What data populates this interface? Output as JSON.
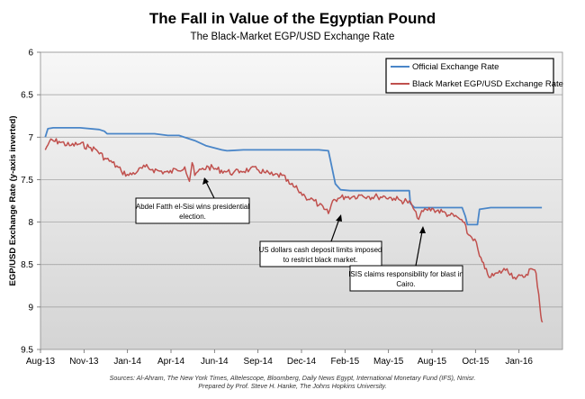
{
  "chart_data": {
    "type": "line",
    "title": "The Fall in Value of the Egyptian Pound",
    "subtitle": "The Black-Market EGP/USD Exchange Rate",
    "ylabel": "EGP/USD Exchange Rate (y-axis inverted)",
    "xlabel": "",
    "ylim": [
      6,
      9.5
    ],
    "y_inverted": true,
    "grid": true,
    "legend_position": "top-right",
    "x_ticks": [
      "Aug-13",
      "Nov-13",
      "Jan-14",
      "Apr-14",
      "Jun-14",
      "Sep-14",
      "Dec-14",
      "Feb-15",
      "May-15",
      "Aug-15",
      "Oct-15",
      "Jan-16"
    ],
    "y_ticks": [
      "6",
      "6.5",
      "7",
      "7.5",
      "8",
      "8.5",
      "9",
      "9.5"
    ],
    "series": [
      {
        "name": "Official Exchange Rate",
        "color": "#4a86c8",
        "x": [
          "2013-08-10",
          "2013-08-15",
          "2013-08-25",
          "2013-10-15",
          "2013-11-20",
          "2013-11-30",
          "2013-12-05",
          "2014-03-05",
          "2014-03-30",
          "2014-04-20",
          "2014-05-20",
          "2014-06-10",
          "2014-07-10",
          "2014-07-20",
          "2014-08-20",
          "2014-10-01",
          "2014-12-15",
          "2015-01-10",
          "2015-01-28",
          "2015-02-01",
          "2015-02-10",
          "2015-02-20",
          "2015-03-10",
          "2015-03-20",
          "2015-04-20",
          "2015-06-01",
          "2015-06-20",
          "2015-06-30",
          "2015-07-02",
          "2015-07-10",
          "2015-08-15",
          "2015-09-15",
          "2015-10-08",
          "2015-10-14",
          "2015-10-18",
          "2015-10-28",
          "2015-11-06",
          "2015-11-10",
          "2015-12-01",
          "2015-12-20",
          "2016-01-20",
          "2016-02-10",
          "2016-03-07"
        ],
        "values": [
          7.0,
          6.9,
          6.89,
          6.89,
          6.91,
          6.93,
          6.96,
          6.96,
          6.98,
          6.98,
          7.04,
          7.1,
          7.15,
          7.16,
          7.15,
          7.15,
          7.15,
          7.15,
          7.16,
          7.28,
          7.55,
          7.62,
          7.63,
          7.63,
          7.63,
          7.63,
          7.63,
          7.63,
          7.78,
          7.83,
          7.83,
          7.83,
          7.83,
          7.93,
          8.03,
          8.03,
          8.03,
          7.85,
          7.83,
          7.83,
          7.83,
          7.83,
          7.83
        ]
      },
      {
        "name": "Black Market EGP/USD Exchange Rate",
        "color": "#c0504d",
        "x": [
          "2013-08-10",
          "2013-08-18",
          "2013-09-05",
          "2013-09-25",
          "2013-10-15",
          "2013-11-01",
          "2013-11-15",
          "2013-12-01",
          "2013-12-15",
          "2014-01-01",
          "2014-01-15",
          "2014-02-01",
          "2014-02-15",
          "2014-03-01",
          "2014-03-15",
          "2014-04-01",
          "2014-04-15",
          "2014-05-01",
          "2014-05-10",
          "2014-05-15",
          "2014-05-20",
          "2014-06-01",
          "2014-06-15",
          "2014-07-01",
          "2014-07-15",
          "2014-08-01",
          "2014-08-15",
          "2014-09-01",
          "2014-09-15",
          "2014-10-01",
          "2014-10-15",
          "2014-11-01",
          "2014-11-15",
          "2014-12-01",
          "2014-12-15",
          "2015-01-01",
          "2015-01-10",
          "2015-01-20",
          "2015-01-28",
          "2015-02-05",
          "2015-02-15",
          "2015-03-01",
          "2015-03-15",
          "2015-04-01",
          "2015-04-15",
          "2015-05-01",
          "2015-05-15",
          "2015-06-01",
          "2015-06-15",
          "2015-06-25",
          "2015-07-05",
          "2015-07-15",
          "2015-08-01",
          "2015-08-15",
          "2015-09-01",
          "2015-09-15",
          "2015-10-01",
          "2015-10-10",
          "2015-10-20",
          "2015-11-01",
          "2015-11-10",
          "2015-11-20",
          "2015-12-01",
          "2015-12-15",
          "2016-01-01",
          "2016-01-15",
          "2016-02-01",
          "2016-02-15",
          "2016-02-25",
          "2016-03-01",
          "2016-03-05",
          "2016-03-08"
        ],
        "values": [
          7.15,
          7.05,
          7.05,
          7.1,
          7.08,
          7.12,
          7.15,
          7.25,
          7.3,
          7.4,
          7.45,
          7.4,
          7.35,
          7.38,
          7.4,
          7.42,
          7.38,
          7.35,
          7.52,
          7.3,
          7.45,
          7.38,
          7.35,
          7.38,
          7.4,
          7.42,
          7.4,
          7.38,
          7.38,
          7.42,
          7.45,
          7.45,
          7.55,
          7.62,
          7.7,
          7.75,
          7.8,
          7.85,
          7.9,
          7.75,
          7.72,
          7.7,
          7.7,
          7.68,
          7.7,
          7.7,
          7.7,
          7.72,
          7.75,
          7.75,
          7.8,
          7.95,
          7.85,
          7.85,
          7.88,
          7.92,
          7.95,
          8.0,
          8.15,
          8.2,
          8.4,
          8.55,
          8.65,
          8.6,
          8.55,
          8.65,
          8.65,
          8.55,
          8.6,
          8.85,
          9.1,
          9.18
        ]
      }
    ],
    "annotations": [
      {
        "id": "sisi",
        "lines": [
          "Abdel Fatth el-Sisi wins presidential",
          "election."
        ]
      },
      {
        "id": "cash",
        "lines": [
          "US dollars cash deposit limits imposed",
          "to restrict black market."
        ]
      },
      {
        "id": "isis",
        "lines": [
          "ISIS claims responsibility for blast in",
          "Cairo."
        ]
      }
    ]
  },
  "footer": {
    "sources": "Sources: Al-Ahram, The New York Times, Altelescope, Bloomberg, Daily News Egypt, International Monetary Fund (IFS), Nmisr.",
    "prepared_by": "Prepared by Prof. Steve H. Hanke, The Johns Hopkins University."
  }
}
